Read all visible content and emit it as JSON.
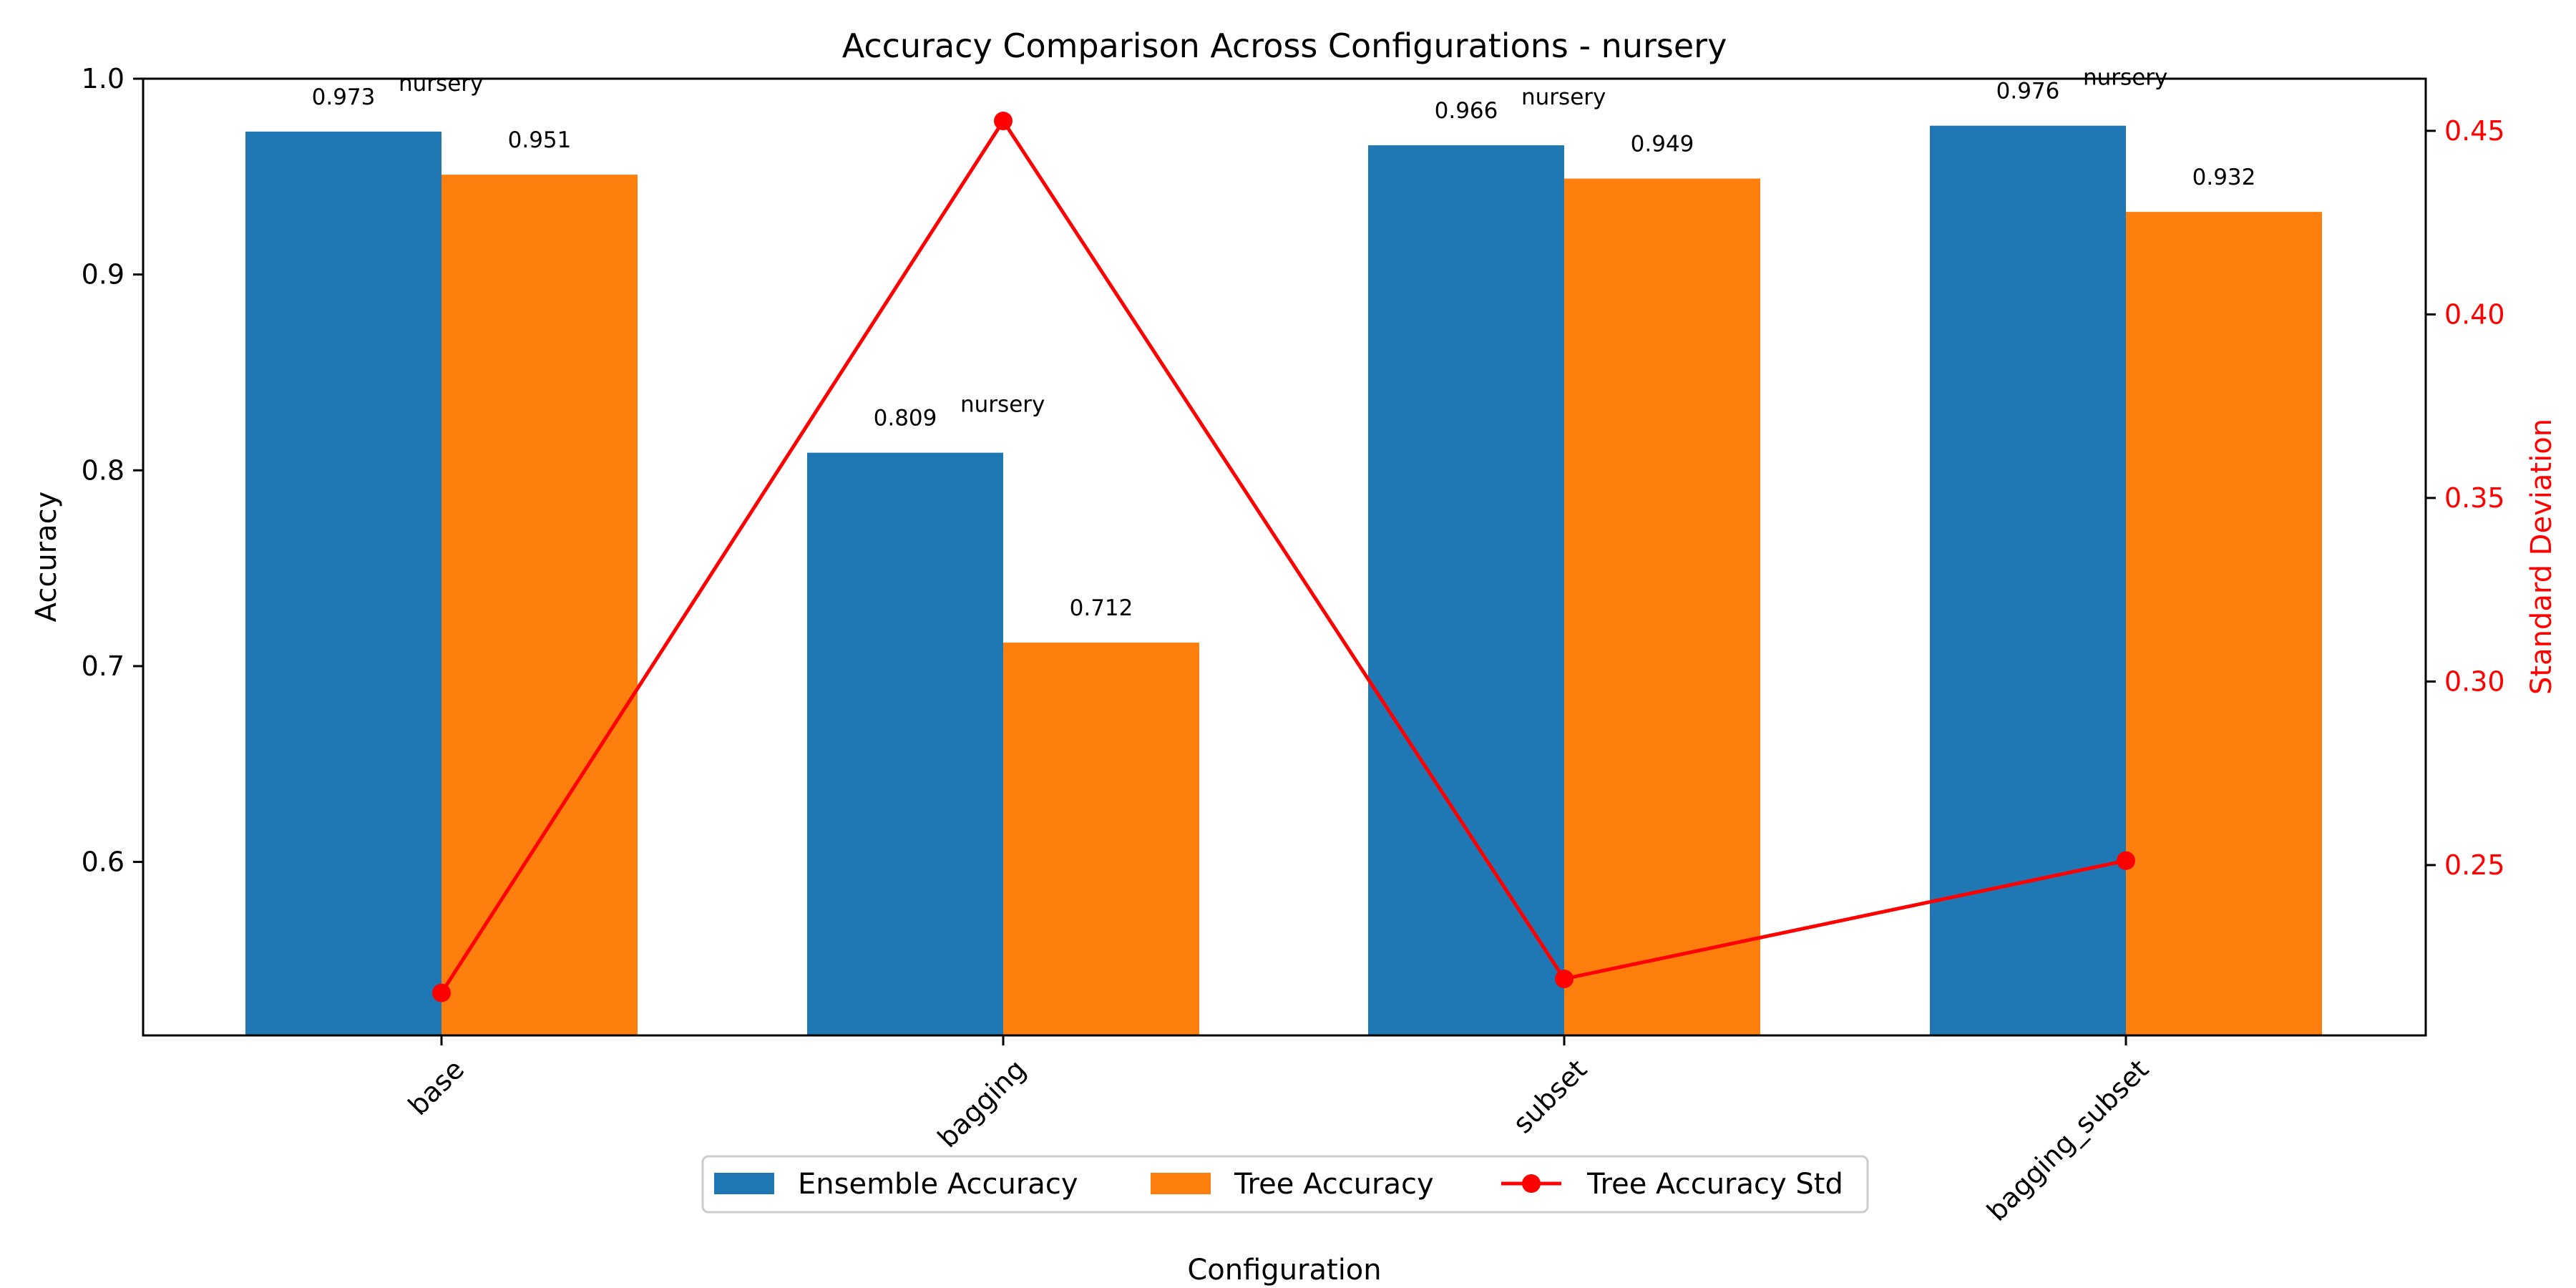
{
  "chart_data": {
    "type": "bar",
    "title": "Accuracy Comparison Across Configurations - nursery",
    "xlabel": "Configuration",
    "ylabel": "Accuracy",
    "y2label": "Standard Deviation",
    "categories": [
      "base",
      "bagging",
      "subset",
      "bagging_subset"
    ],
    "ylim": [
      0.5114,
      1.0
    ],
    "y2lim": [
      0.2036,
      0.4642
    ],
    "yticks": [
      "0.6",
      "0.7",
      "0.8",
      "0.9",
      "1.0"
    ],
    "y2ticks": [
      "0.25",
      "0.30",
      "0.35",
      "0.40",
      "0.45"
    ],
    "series": [
      {
        "name": "Ensemble Accuracy",
        "kind": "bar",
        "axis": "left",
        "color": "#1f77b4",
        "values": [
          0.973,
          0.809,
          0.966,
          0.976
        ],
        "labels": [
          "0.973",
          "0.809",
          "0.966",
          "0.976"
        ]
      },
      {
        "name": "Tree Accuracy",
        "kind": "bar",
        "axis": "left",
        "color": "#ff7f0e",
        "values": [
          0.951,
          0.712,
          0.949,
          0.932
        ],
        "labels": [
          "0.951",
          "0.712",
          "0.949",
          "0.932"
        ]
      },
      {
        "name": "Tree Accuracy Std",
        "kind": "line",
        "axis": "right",
        "color": "#ff0000",
        "values": [
          0.2152,
          0.4527,
          0.219,
          0.2512
        ]
      }
    ],
    "annotations": [
      "nursery",
      "nursery",
      "nursery",
      "nursery"
    ],
    "legend_position": "bottom-center",
    "grid": false
  }
}
